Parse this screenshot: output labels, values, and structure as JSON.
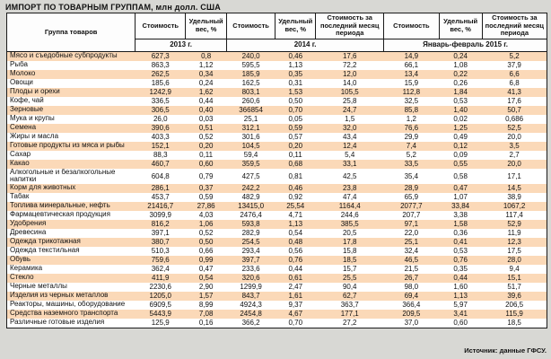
{
  "title": "ИМПОРТ ПО ТОВАРНЫМ ГРУППАМ, млн долл. США",
  "source": "Источник: данные ГФСУ.",
  "colors": {
    "stripe": "#fbd9b8",
    "page_background": "#d8d8d4",
    "border": "#1a1a1a"
  },
  "table": {
    "group_header": "Группа товаров",
    "col_headers": [
      "Стоимость",
      "Удельный вес, %",
      "Стоимость",
      "Удельный вес, %",
      "Стоимость за последний месяц периода",
      "Стоимость",
      "Удельный вес, %",
      "Стоимость за последний месяц периода"
    ],
    "period_headers": [
      "2013 г.",
      "2014 г.",
      "Январь-февраль 2015 г."
    ],
    "rows": [
      {
        "group": "Мясо и съедобные субпродукты",
        "v": [
          "627,3",
          "0,8",
          "240,0",
          "0,46",
          "17,6",
          "14,9",
          "0,24",
          "5,2"
        ]
      },
      {
        "group": "Рыба",
        "v": [
          "863,3",
          "1,12",
          "595,5",
          "1,13",
          "72,2",
          "66,1",
          "1,08",
          "37,9"
        ]
      },
      {
        "group": "Молоко",
        "v": [
          "262,5",
          "0,34",
          "185,9",
          "0,35",
          "12,0",
          "13,4",
          "0,22",
          "6,6"
        ]
      },
      {
        "group": "Овощи",
        "v": [
          "185,6",
          "0,24",
          "162,5",
          "0,31",
          "14,0",
          "15,9",
          "0,26",
          "6,8"
        ]
      },
      {
        "group": "Плоды и орехи",
        "v": [
          "1242,9",
          "1,62",
          "803,1",
          "1,53",
          "105,5",
          "112,8",
          "1,84",
          "41,3"
        ]
      },
      {
        "group": "Кофе, чай",
        "v": [
          "336,5",
          "0,44",
          "260,6",
          "0,50",
          "25,8",
          "32,5",
          "0,53",
          "17,6"
        ]
      },
      {
        "group": "Зерновые",
        "v": [
          "306,5",
          "0,40",
          "366854",
          "0,70",
          "24,7",
          "85,8",
          "1,40",
          "50,7"
        ]
      },
      {
        "group": "Мука и крупы",
        "v": [
          "26,0",
          "0,03",
          "25,1",
          "0,05",
          "1,5",
          "1,2",
          "0,02",
          "0,686"
        ]
      },
      {
        "group": "Семена",
        "v": [
          "390,6",
          "0,51",
          "312,1",
          "0,59",
          "32,0",
          "76,6",
          "1,25",
          "52,5"
        ]
      },
      {
        "group": "Жиры и масла",
        "v": [
          "403,3",
          "0,52",
          "301,6",
          "0,57",
          "43,4",
          "29,9",
          "0,49",
          "20,0"
        ]
      },
      {
        "group": "Готовые продукты из мяса и рыбы",
        "v": [
          "152,1",
          "0,20",
          "104,5",
          "0,20",
          "12,4",
          "7,4",
          "0,12",
          "3,5"
        ]
      },
      {
        "group": "Сахар",
        "v": [
          "88,3",
          "0,11",
          "59,4",
          "0,11",
          "5,4",
          "5,2",
          "0,09",
          "2,7"
        ]
      },
      {
        "group": "Какао",
        "v": [
          "460,7",
          "0,60",
          "359,5",
          "0,68",
          "33,1",
          "33,5",
          "0,55",
          "20,0"
        ]
      },
      {
        "group": "Алкогольные и безалкогольные напитки",
        "v": [
          "604,8",
          "0,79",
          "427,5",
          "0,81",
          "42,5",
          "35,4",
          "0,58",
          "17,1"
        ]
      },
      {
        "group": "Корм для животных",
        "v": [
          "286,1",
          "0,37",
          "242,2",
          "0,46",
          "23,8",
          "28,9",
          "0,47",
          "14,5"
        ]
      },
      {
        "group": "Табак",
        "v": [
          "453,7",
          "0,59",
          "482,9",
          "0,92",
          "47,4",
          "65,9",
          "1,07",
          "38,9"
        ]
      },
      {
        "group": "Топлива минеральные, нефть",
        "v": [
          "21416,7",
          "27,86",
          "13415,0",
          "25,54",
          "1164,4",
          "2077,7",
          "33,84",
          "1067,2"
        ]
      },
      {
        "group": "Фармацевтическая продукция",
        "v": [
          "3099,9",
          "4,03",
          "2476,4",
          "4,71",
          "244,6",
          "207,7",
          "3,38",
          "117,4"
        ]
      },
      {
        "group": "Удобрения",
        "v": [
          "816,2",
          "1,06",
          "593,8",
          "1,13",
          "385,5",
          "97,1",
          "1,58",
          "52,9"
        ]
      },
      {
        "group": "Древесина",
        "v": [
          "397,1",
          "0,52",
          "282,9",
          "0,54",
          "20,5",
          "22,0",
          "0,36",
          "11,9"
        ]
      },
      {
        "group": "Одежда трикотажная",
        "v": [
          "380,7",
          "0,50",
          "254,5",
          "0,48",
          "17,8",
          "25,1",
          "0,41",
          "12,3"
        ]
      },
      {
        "group": "Одежда текстильная",
        "v": [
          "510,3",
          "0,66",
          "293,4",
          "0,56",
          "15,8",
          "32,4",
          "0,53",
          "17,5"
        ]
      },
      {
        "group": "Обувь",
        "v": [
          "759,6",
          "0,99",
          "397,7",
          "0,76",
          "18,5",
          "46,5",
          "0,76",
          "28,0"
        ]
      },
      {
        "group": "Керамика",
        "v": [
          "362,4",
          "0,47",
          "233,6",
          "0,44",
          "15,7",
          "21,5",
          "0,35",
          "9,4"
        ]
      },
      {
        "group": "Стекло",
        "v": [
          "411,9",
          "0,54",
          "320,6",
          "0,61",
          "25,5",
          "26,7",
          "0,44",
          "15,1"
        ]
      },
      {
        "group": "Черные металлы",
        "v": [
          "2230,6",
          "2,90",
          "1299,9",
          "2,47",
          "90,4",
          "98,0",
          "1,60",
          "51,7"
        ]
      },
      {
        "group": "Изделия из черных металлов",
        "v": [
          "1205,0",
          "1,57",
          "843,7",
          "1,61",
          "62,7",
          "69,4",
          "1,13",
          "39,6"
        ]
      },
      {
        "group": "Реакторы, машины, оборудование",
        "v": [
          "6909,5",
          "8,99",
          "4924,3",
          "9,37",
          "363,7",
          "366,4",
          "5,97",
          "206,5"
        ]
      },
      {
        "group": "Средства наземного транспорта",
        "v": [
          "5443,9",
          "7,08",
          "2454,8",
          "4,67",
          "177,1",
          "209,5",
          "3,41",
          "115,9"
        ]
      },
      {
        "group": "Различные готовые изделия",
        "v": [
          "125,9",
          "0,16",
          "366,2",
          "0,70",
          "27,2",
          "37,0",
          "0,60",
          "18,5"
        ]
      }
    ]
  }
}
